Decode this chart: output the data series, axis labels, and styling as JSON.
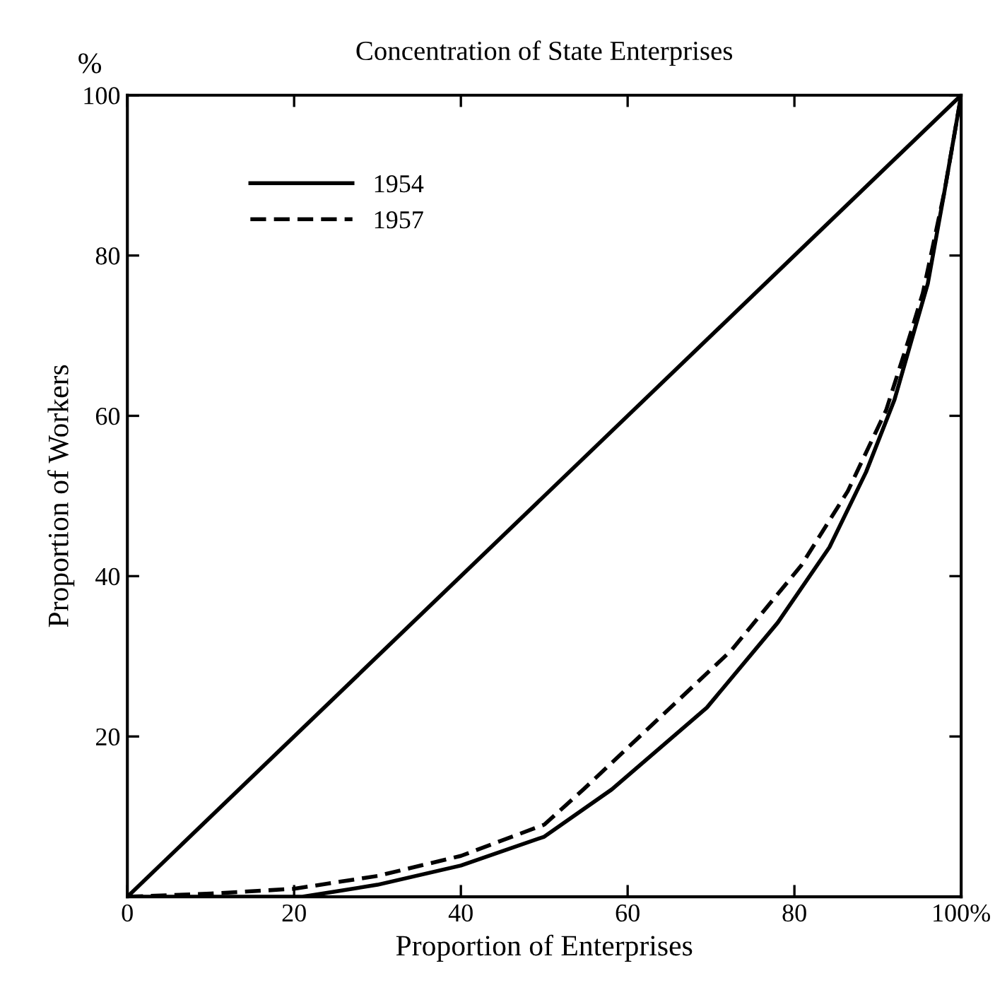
{
  "chart_data": {
    "type": "line",
    "title": "Concentration of State Enterprises",
    "xlabel": "Proportion of Enterprises",
    "ylabel": "Proportion of Workers",
    "annotations": [
      "%"
    ],
    "series": [
      {
        "x": [
          0,
          100
        ],
        "values": [
          0,
          100
        ],
        "color": "#000000",
        "line_style": "solid"
      },
      {
        "name": "1954",
        "color": "#000000",
        "line_style": "solid",
        "x": [
          0,
          21,
          30,
          40,
          50,
          58.1,
          69.5,
          78,
          84.2,
          88.6,
          92,
          94.4,
          96,
          98,
          100
        ],
        "values": [
          0,
          0,
          1.5,
          3.9,
          7.5,
          13.4,
          23.6,
          34.2,
          43.6,
          53,
          62,
          70.7,
          76.5,
          88,
          100
        ]
      },
      {
        "name": "1957",
        "color": "#000000",
        "line_style": "dashed",
        "x": [
          0,
          10,
          20,
          30,
          40,
          50,
          54.7,
          63.9,
          72.4,
          80.8,
          86.4,
          91,
          93.7,
          95.4,
          98,
          100
        ],
        "values": [
          0,
          0.4,
          1,
          2.6,
          5.1,
          9,
          13.4,
          22.4,
          30.7,
          41.3,
          50.6,
          60.7,
          69.5,
          75.3,
          88,
          100
        ]
      }
    ],
    "xlim": [
      0,
      100
    ],
    "ylim": [
      0,
      100
    ],
    "xticks": [
      0,
      20,
      40,
      60,
      80,
      {
        "value": 100,
        "label": "100%"
      }
    ],
    "yticks": [
      20,
      40,
      60,
      80,
      100
    ],
    "legend": "top left",
    "grid": false
  }
}
